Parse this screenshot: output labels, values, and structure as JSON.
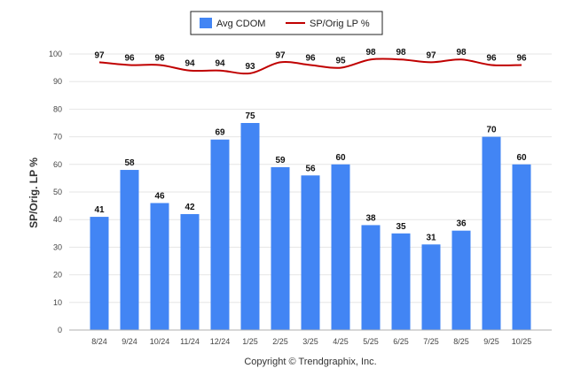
{
  "chart_data": {
    "type": "bar",
    "categories": [
      "8/24",
      "9/24",
      "10/24",
      "11/24",
      "12/24",
      "1/25",
      "2/25",
      "3/25",
      "4/25",
      "5/25",
      "6/25",
      "7/25",
      "8/25",
      "9/25",
      "10/25"
    ],
    "series": [
      {
        "name": "Avg CDOM",
        "type": "bar",
        "values": [
          41,
          58,
          46,
          42,
          69,
          75,
          59,
          56,
          60,
          38,
          35,
          31,
          36,
          70,
          60
        ],
        "color": "#4285f4"
      },
      {
        "name": "SP/Orig LP %",
        "type": "line",
        "values": [
          97,
          96,
          96,
          94,
          94,
          93,
          97,
          96,
          95,
          98,
          98,
          97,
          98,
          96,
          96
        ],
        "color": "#c00000"
      }
    ],
    "ylabel": "SP/Orig. LP %",
    "xlabel": "",
    "ylim": [
      0,
      100
    ],
    "yticks": [
      0,
      10,
      20,
      30,
      40,
      50,
      60,
      70,
      80,
      90,
      100
    ],
    "grid": true,
    "legend_position": "top-center"
  },
  "footer": {
    "text": "Copyright © Trendgraphix, Inc."
  }
}
